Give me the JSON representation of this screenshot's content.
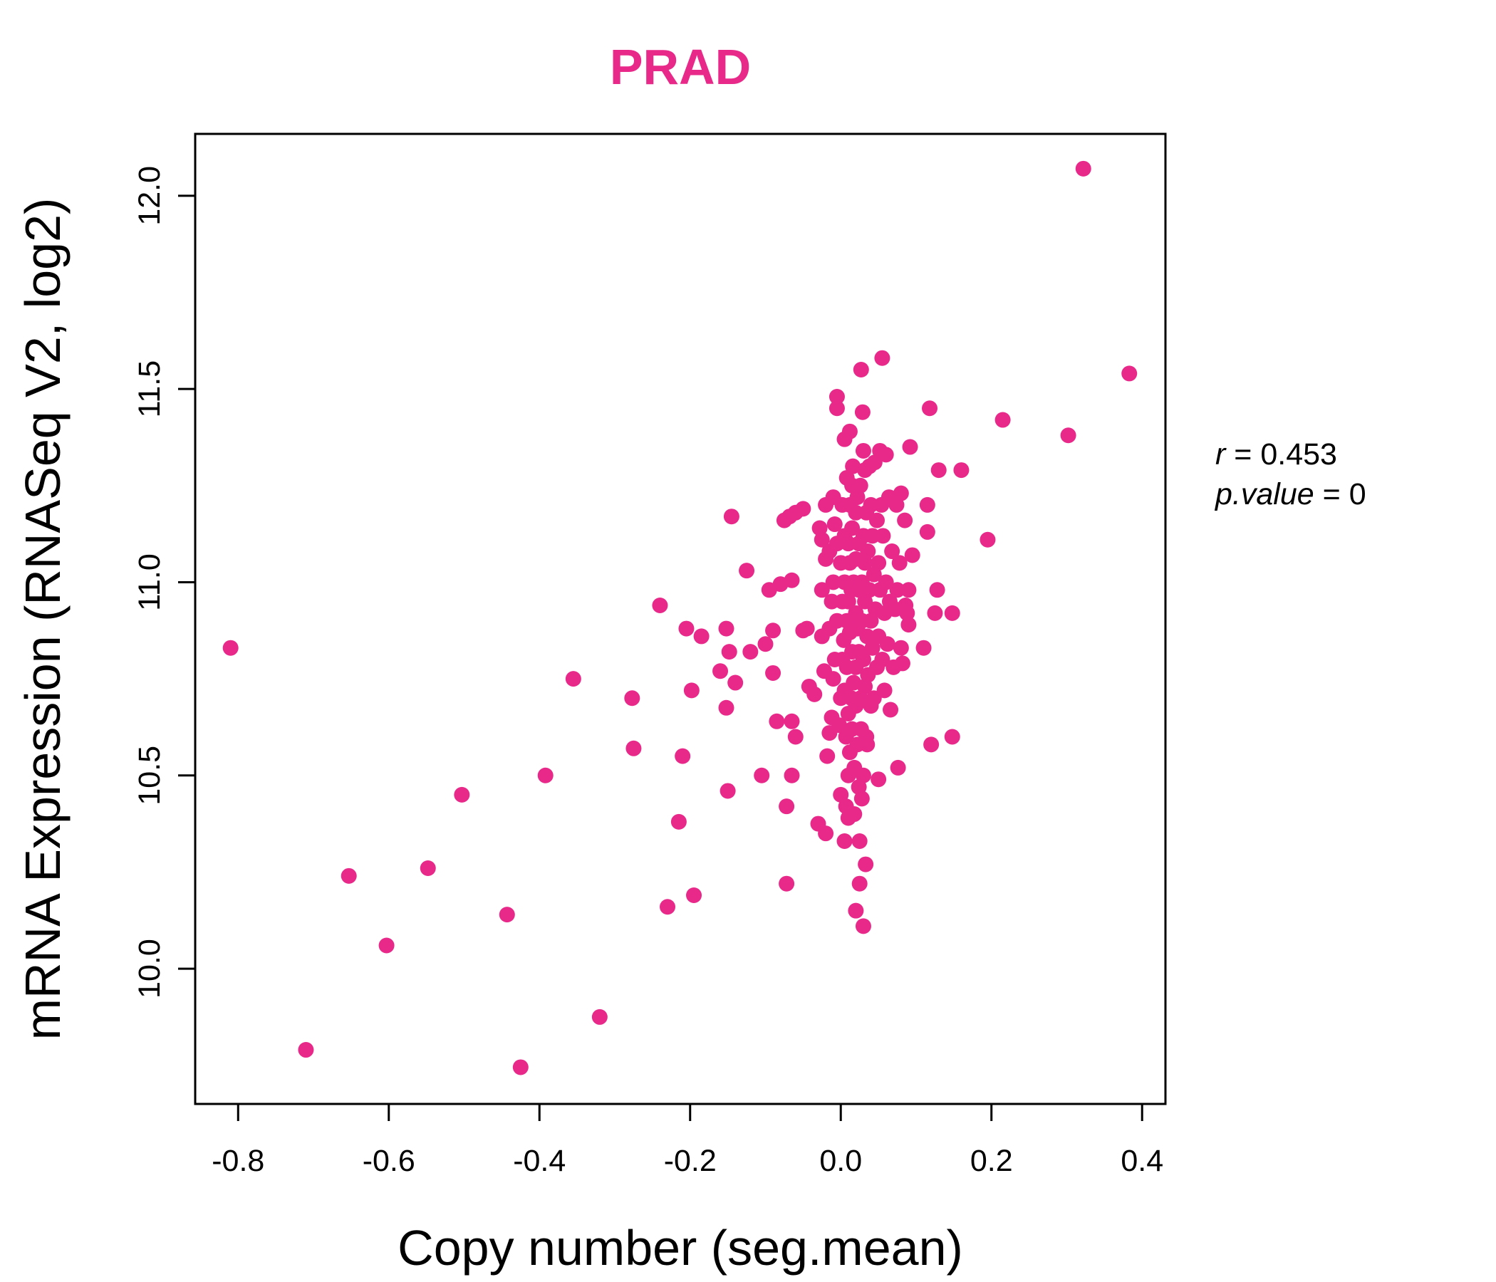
{
  "chart_data": {
    "type": "scatter",
    "title": "PRAD",
    "title_color": "#E8298A",
    "point_color": "#E8298A",
    "xlabel": "Copy number (seg.mean)",
    "ylabel": "mRNA Expression (RNASeq V2, log2)",
    "xlim": [
      -0.857,
      0.431
    ],
    "ylim": [
      9.65,
      12.16
    ],
    "x_ticks": [
      -0.8,
      -0.6,
      -0.4,
      -0.2,
      0.0,
      0.2,
      0.4
    ],
    "x_tick_labels": [
      "-0.8",
      "-0.6",
      "-0.4",
      "-0.2",
      "0.0",
      "0.2",
      "0.4"
    ],
    "y_ticks": [
      10.0,
      10.5,
      11.0,
      11.5,
      12.0
    ],
    "y_tick_labels": [
      "10.0",
      "10.5",
      "11.0",
      "11.5",
      "12.0"
    ],
    "grid": false,
    "legend": "none",
    "stats": {
      "r_label": "r",
      "r_value": "0.453",
      "p_label": "p.value",
      "p_value": "0"
    },
    "points": [
      [
        -0.81,
        10.83
      ],
      [
        -0.71,
        9.79
      ],
      [
        -0.653,
        10.24
      ],
      [
        -0.603,
        10.06
      ],
      [
        -0.548,
        10.26
      ],
      [
        -0.503,
        10.45
      ],
      [
        -0.443,
        10.14
      ],
      [
        -0.425,
        9.745
      ],
      [
        -0.392,
        10.5
      ],
      [
        -0.355,
        10.75
      ],
      [
        -0.32,
        9.875
      ],
      [
        -0.275,
        10.57
      ],
      [
        -0.277,
        10.7
      ],
      [
        -0.24,
        10.94
      ],
      [
        -0.23,
        10.16
      ],
      [
        -0.215,
        10.38
      ],
      [
        -0.21,
        10.55
      ],
      [
        -0.205,
        10.88
      ],
      [
        -0.198,
        10.72
      ],
      [
        -0.195,
        10.19
      ],
      [
        -0.185,
        10.86
      ],
      [
        -0.16,
        10.77
      ],
      [
        -0.152,
        10.88
      ],
      [
        -0.152,
        10.675
      ],
      [
        -0.15,
        10.46
      ],
      [
        -0.148,
        10.82
      ],
      [
        -0.145,
        11.17
      ],
      [
        -0.14,
        10.74
      ],
      [
        -0.125,
        11.03
      ],
      [
        -0.12,
        10.82
      ],
      [
        -0.105,
        10.5
      ],
      [
        -0.1,
        10.84
      ],
      [
        -0.095,
        10.98
      ],
      [
        -0.09,
        10.875
      ],
      [
        -0.09,
        10.765
      ],
      [
        -0.085,
        10.64
      ],
      [
        -0.08,
        10.995
      ],
      [
        -0.075,
        11.16
      ],
      [
        -0.072,
        10.42
      ],
      [
        -0.072,
        10.22
      ],
      [
        -0.068,
        11.17
      ],
      [
        -0.065,
        11.005
      ],
      [
        -0.065,
        10.64
      ],
      [
        -0.065,
        10.5
      ],
      [
        -0.06,
        11.18
      ],
      [
        -0.06,
        10.6
      ],
      [
        -0.05,
        11.19
      ],
      [
        -0.05,
        10.875
      ],
      [
        -0.045,
        10.88
      ],
      [
        -0.042,
        10.73
      ],
      [
        -0.035,
        10.71
      ],
      [
        -0.03,
        10.375
      ],
      [
        -0.028,
        11.14
      ],
      [
        -0.025,
        11.11
      ],
      [
        -0.025,
        10.86
      ],
      [
        -0.025,
        10.98
      ],
      [
        -0.022,
        10.77
      ],
      [
        -0.02,
        11.2
      ],
      [
        -0.02,
        11.06
      ],
      [
        -0.02,
        10.35
      ],
      [
        -0.018,
        10.55
      ],
      [
        -0.015,
        10.61
      ],
      [
        -0.015,
        10.88
      ],
      [
        -0.015,
        11.08
      ],
      [
        -0.012,
        10.95
      ],
      [
        -0.012,
        10.65
      ],
      [
        -0.01,
        11.22
      ],
      [
        -0.01,
        11.0
      ],
      [
        -0.01,
        10.75
      ],
      [
        -0.008,
        11.15
      ],
      [
        -0.008,
        10.8
      ],
      [
        -0.005,
        11.48
      ],
      [
        -0.005,
        11.45
      ],
      [
        -0.005,
        11.1
      ],
      [
        -0.005,
        10.9
      ],
      [
        -0.002,
        10.63
      ],
      [
        0.0,
        11.05
      ],
      [
        0.0,
        10.7
      ],
      [
        0.0,
        10.45
      ],
      [
        0.002,
        11.2
      ],
      [
        0.002,
        10.95
      ],
      [
        0.002,
        10.8
      ],
      [
        0.004,
        10.85
      ],
      [
        0.005,
        11.37
      ],
      [
        0.005,
        11.12
      ],
      [
        0.005,
        11.0
      ],
      [
        0.005,
        10.72
      ],
      [
        0.005,
        10.33
      ],
      [
        0.007,
        10.6
      ],
      [
        0.007,
        10.42
      ],
      [
        0.008,
        11.27
      ],
      [
        0.008,
        10.9
      ],
      [
        0.008,
        10.78
      ],
      [
        0.01,
        11.1
      ],
      [
        0.01,
        10.95
      ],
      [
        0.01,
        10.66
      ],
      [
        0.01,
        10.5
      ],
      [
        0.01,
        10.39
      ],
      [
        0.012,
        11.39
      ],
      [
        0.012,
        11.2
      ],
      [
        0.012,
        11.05
      ],
      [
        0.012,
        10.87
      ],
      [
        0.012,
        10.56
      ],
      [
        0.014,
        10.98
      ],
      [
        0.014,
        10.7
      ],
      [
        0.015,
        11.25
      ],
      [
        0.015,
        11.14
      ],
      [
        0.015,
        10.82
      ],
      [
        0.015,
        10.62
      ],
      [
        0.016,
        11.3
      ],
      [
        0.017,
        11.0
      ],
      [
        0.017,
        10.74
      ],
      [
        0.018,
        10.52
      ],
      [
        0.018,
        10.4
      ],
      [
        0.02,
        11.18
      ],
      [
        0.02,
        11.06
      ],
      [
        0.02,
        10.92
      ],
      [
        0.02,
        10.78
      ],
      [
        0.02,
        10.68
      ],
      [
        0.02,
        10.15
      ],
      [
        0.022,
        11.22
      ],
      [
        0.022,
        10.88
      ],
      [
        0.022,
        10.58
      ],
      [
        0.024,
        11.1
      ],
      [
        0.024,
        10.98
      ],
      [
        0.024,
        10.82
      ],
      [
        0.024,
        10.47
      ],
      [
        0.025,
        10.22
      ],
      [
        0.025,
        10.33
      ],
      [
        0.026,
        11.25
      ],
      [
        0.026,
        10.7
      ],
      [
        0.027,
        11.55
      ],
      [
        0.027,
        10.62
      ],
      [
        0.028,
        11.0
      ],
      [
        0.028,
        10.9
      ],
      [
        0.028,
        10.44
      ],
      [
        0.029,
        11.44
      ],
      [
        0.03,
        11.34
      ],
      [
        0.03,
        11.12
      ],
      [
        0.03,
        10.8
      ],
      [
        0.03,
        10.5
      ],
      [
        0.03,
        10.11
      ],
      [
        0.032,
        11.29
      ],
      [
        0.032,
        11.05
      ],
      [
        0.032,
        10.95
      ],
      [
        0.032,
        10.73
      ],
      [
        0.033,
        10.27
      ],
      [
        0.034,
        11.18
      ],
      [
        0.034,
        10.6
      ],
      [
        0.035,
        10.86
      ],
      [
        0.035,
        10.58
      ],
      [
        0.036,
        11.08
      ],
      [
        0.036,
        10.76
      ],
      [
        0.038,
        11.3
      ],
      [
        0.038,
        10.98
      ],
      [
        0.04,
        11.2
      ],
      [
        0.04,
        10.9
      ],
      [
        0.04,
        10.68
      ],
      [
        0.042,
        11.12
      ],
      [
        0.042,
        10.83
      ],
      [
        0.044,
        11.02
      ],
      [
        0.044,
        10.7
      ],
      [
        0.045,
        11.31
      ],
      [
        0.046,
        10.93
      ],
      [
        0.048,
        11.16
      ],
      [
        0.048,
        10.78
      ],
      [
        0.05,
        11.05
      ],
      [
        0.05,
        10.86
      ],
      [
        0.05,
        10.49
      ],
      [
        0.052,
        11.34
      ],
      [
        0.052,
        10.98
      ],
      [
        0.054,
        11.2
      ],
      [
        0.055,
        11.58
      ],
      [
        0.055,
        10.8
      ],
      [
        0.056,
        11.12
      ],
      [
        0.058,
        10.92
      ],
      [
        0.058,
        10.72
      ],
      [
        0.06,
        11.33
      ],
      [
        0.06,
        11.0
      ],
      [
        0.062,
        10.84
      ],
      [
        0.064,
        11.22
      ],
      [
        0.065,
        10.95
      ],
      [
        0.066,
        10.67
      ],
      [
        0.068,
        11.08
      ],
      [
        0.07,
        10.78
      ],
      [
        0.072,
        10.93
      ],
      [
        0.074,
        11.2
      ],
      [
        0.075,
        10.98
      ],
      [
        0.076,
        10.52
      ],
      [
        0.078,
        11.05
      ],
      [
        0.08,
        10.83
      ],
      [
        0.08,
        11.23
      ],
      [
        0.082,
        10.79
      ],
      [
        0.085,
        11.16
      ],
      [
        0.086,
        10.94
      ],
      [
        0.088,
        10.92
      ],
      [
        0.09,
        10.98
      ],
      [
        0.09,
        10.89
      ],
      [
        0.092,
        11.35
      ],
      [
        0.095,
        11.07
      ],
      [
        0.11,
        10.83
      ],
      [
        0.115,
        11.2
      ],
      [
        0.115,
        11.13
      ],
      [
        0.118,
        11.45
      ],
      [
        0.12,
        10.58
      ],
      [
        0.125,
        10.92
      ],
      [
        0.128,
        10.98
      ],
      [
        0.13,
        11.29
      ],
      [
        0.148,
        10.92
      ],
      [
        0.148,
        10.6
      ],
      [
        0.16,
        11.29
      ],
      [
        0.195,
        11.11
      ],
      [
        0.215,
        11.42
      ],
      [
        0.302,
        11.38
      ],
      [
        0.322,
        12.07
      ],
      [
        0.383,
        11.54
      ]
    ]
  }
}
